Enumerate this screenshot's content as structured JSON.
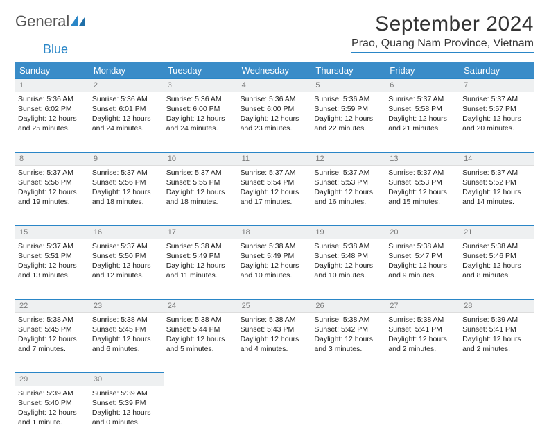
{
  "logo": {
    "text1": "General",
    "text2": "Blue"
  },
  "title": "September 2024",
  "location": "Prao, Quang Nam Province, Vietnam",
  "colors": {
    "headerBar": "#3a8cc8",
    "accent": "#2a86c7",
    "dayStrip": "#eef0f1",
    "dayNum": "#7a7a7a",
    "text": "#222222",
    "bg": "#ffffff"
  },
  "weekdays": [
    "Sunday",
    "Monday",
    "Tuesday",
    "Wednesday",
    "Thursday",
    "Friday",
    "Saturday"
  ],
  "days": [
    {
      "n": "1",
      "sr": "Sunrise: 5:36 AM",
      "ss": "Sunset: 6:02 PM",
      "d1": "Daylight: 12 hours",
      "d2": "and 25 minutes."
    },
    {
      "n": "2",
      "sr": "Sunrise: 5:36 AM",
      "ss": "Sunset: 6:01 PM",
      "d1": "Daylight: 12 hours",
      "d2": "and 24 minutes."
    },
    {
      "n": "3",
      "sr": "Sunrise: 5:36 AM",
      "ss": "Sunset: 6:00 PM",
      "d1": "Daylight: 12 hours",
      "d2": "and 24 minutes."
    },
    {
      "n": "4",
      "sr": "Sunrise: 5:36 AM",
      "ss": "Sunset: 6:00 PM",
      "d1": "Daylight: 12 hours",
      "d2": "and 23 minutes."
    },
    {
      "n": "5",
      "sr": "Sunrise: 5:36 AM",
      "ss": "Sunset: 5:59 PM",
      "d1": "Daylight: 12 hours",
      "d2": "and 22 minutes."
    },
    {
      "n": "6",
      "sr": "Sunrise: 5:37 AM",
      "ss": "Sunset: 5:58 PM",
      "d1": "Daylight: 12 hours",
      "d2": "and 21 minutes."
    },
    {
      "n": "7",
      "sr": "Sunrise: 5:37 AM",
      "ss": "Sunset: 5:57 PM",
      "d1": "Daylight: 12 hours",
      "d2": "and 20 minutes."
    },
    {
      "n": "8",
      "sr": "Sunrise: 5:37 AM",
      "ss": "Sunset: 5:56 PM",
      "d1": "Daylight: 12 hours",
      "d2": "and 19 minutes."
    },
    {
      "n": "9",
      "sr": "Sunrise: 5:37 AM",
      "ss": "Sunset: 5:56 PM",
      "d1": "Daylight: 12 hours",
      "d2": "and 18 minutes."
    },
    {
      "n": "10",
      "sr": "Sunrise: 5:37 AM",
      "ss": "Sunset: 5:55 PM",
      "d1": "Daylight: 12 hours",
      "d2": "and 18 minutes."
    },
    {
      "n": "11",
      "sr": "Sunrise: 5:37 AM",
      "ss": "Sunset: 5:54 PM",
      "d1": "Daylight: 12 hours",
      "d2": "and 17 minutes."
    },
    {
      "n": "12",
      "sr": "Sunrise: 5:37 AM",
      "ss": "Sunset: 5:53 PM",
      "d1": "Daylight: 12 hours",
      "d2": "and 16 minutes."
    },
    {
      "n": "13",
      "sr": "Sunrise: 5:37 AM",
      "ss": "Sunset: 5:53 PM",
      "d1": "Daylight: 12 hours",
      "d2": "and 15 minutes."
    },
    {
      "n": "14",
      "sr": "Sunrise: 5:37 AM",
      "ss": "Sunset: 5:52 PM",
      "d1": "Daylight: 12 hours",
      "d2": "and 14 minutes."
    },
    {
      "n": "15",
      "sr": "Sunrise: 5:37 AM",
      "ss": "Sunset: 5:51 PM",
      "d1": "Daylight: 12 hours",
      "d2": "and 13 minutes."
    },
    {
      "n": "16",
      "sr": "Sunrise: 5:37 AM",
      "ss": "Sunset: 5:50 PM",
      "d1": "Daylight: 12 hours",
      "d2": "and 12 minutes."
    },
    {
      "n": "17",
      "sr": "Sunrise: 5:38 AM",
      "ss": "Sunset: 5:49 PM",
      "d1": "Daylight: 12 hours",
      "d2": "and 11 minutes."
    },
    {
      "n": "18",
      "sr": "Sunrise: 5:38 AM",
      "ss": "Sunset: 5:49 PM",
      "d1": "Daylight: 12 hours",
      "d2": "and 10 minutes."
    },
    {
      "n": "19",
      "sr": "Sunrise: 5:38 AM",
      "ss": "Sunset: 5:48 PM",
      "d1": "Daylight: 12 hours",
      "d2": "and 10 minutes."
    },
    {
      "n": "20",
      "sr": "Sunrise: 5:38 AM",
      "ss": "Sunset: 5:47 PM",
      "d1": "Daylight: 12 hours",
      "d2": "and 9 minutes."
    },
    {
      "n": "21",
      "sr": "Sunrise: 5:38 AM",
      "ss": "Sunset: 5:46 PM",
      "d1": "Daylight: 12 hours",
      "d2": "and 8 minutes."
    },
    {
      "n": "22",
      "sr": "Sunrise: 5:38 AM",
      "ss": "Sunset: 5:45 PM",
      "d1": "Daylight: 12 hours",
      "d2": "and 7 minutes."
    },
    {
      "n": "23",
      "sr": "Sunrise: 5:38 AM",
      "ss": "Sunset: 5:45 PM",
      "d1": "Daylight: 12 hours",
      "d2": "and 6 minutes."
    },
    {
      "n": "24",
      "sr": "Sunrise: 5:38 AM",
      "ss": "Sunset: 5:44 PM",
      "d1": "Daylight: 12 hours",
      "d2": "and 5 minutes."
    },
    {
      "n": "25",
      "sr": "Sunrise: 5:38 AM",
      "ss": "Sunset: 5:43 PM",
      "d1": "Daylight: 12 hours",
      "d2": "and 4 minutes."
    },
    {
      "n": "26",
      "sr": "Sunrise: 5:38 AM",
      "ss": "Sunset: 5:42 PM",
      "d1": "Daylight: 12 hours",
      "d2": "and 3 minutes."
    },
    {
      "n": "27",
      "sr": "Sunrise: 5:38 AM",
      "ss": "Sunset: 5:41 PM",
      "d1": "Daylight: 12 hours",
      "d2": "and 2 minutes."
    },
    {
      "n": "28",
      "sr": "Sunrise: 5:39 AM",
      "ss": "Sunset: 5:41 PM",
      "d1": "Daylight: 12 hours",
      "d2": "and 2 minutes."
    },
    {
      "n": "29",
      "sr": "Sunrise: 5:39 AM",
      "ss": "Sunset: 5:40 PM",
      "d1": "Daylight: 12 hours",
      "d2": "and 1 minute."
    },
    {
      "n": "30",
      "sr": "Sunrise: 5:39 AM",
      "ss": "Sunset: 5:39 PM",
      "d1": "Daylight: 12 hours",
      "d2": "and 0 minutes."
    }
  ]
}
